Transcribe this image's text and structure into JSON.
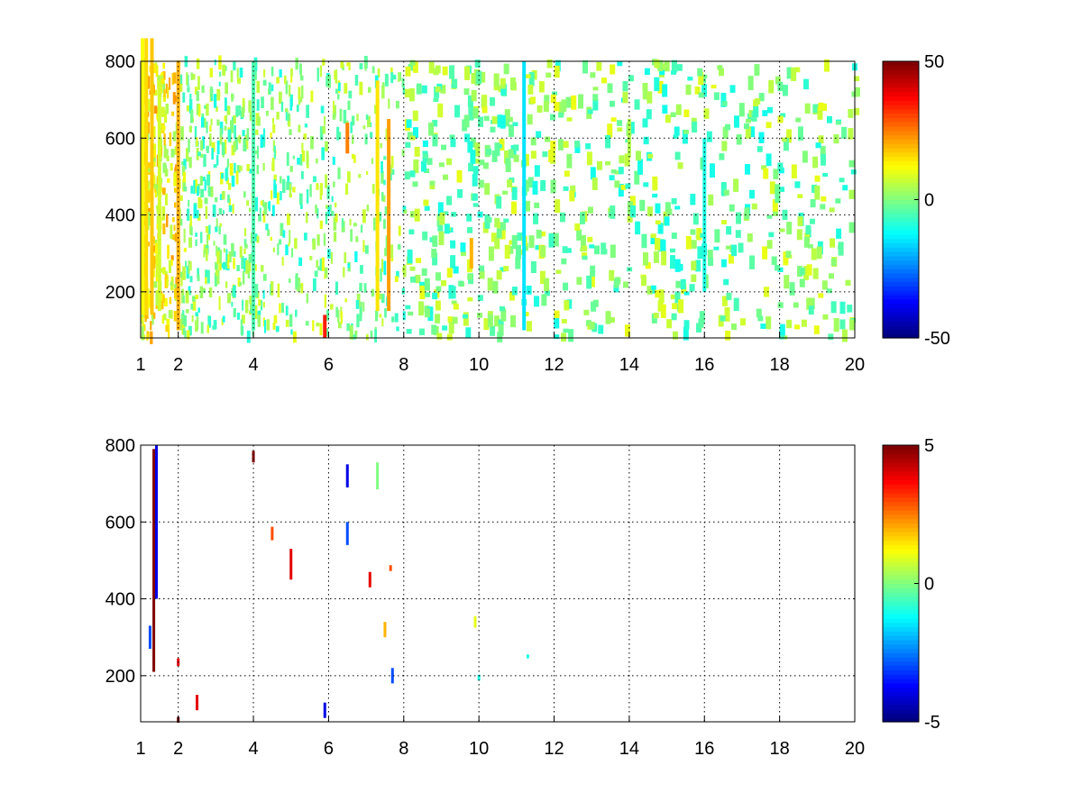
{
  "chart_data": [
    {
      "type": "heatmap",
      "title": "",
      "xlabel": "",
      "ylabel": "",
      "xlim": [
        1,
        20
      ],
      "ylim": [
        80,
        800
      ],
      "x_ticks": [
        "1",
        "2",
        "4",
        "6",
        "8",
        "10",
        "12",
        "14",
        "16",
        "18",
        "20"
      ],
      "y_ticks": [
        "200",
        "400",
        "600",
        "800"
      ],
      "grid": true,
      "colormap": "jet",
      "colorbar": {
        "min": -50,
        "max": 50,
        "ticks": [
          "50",
          "0",
          "-50"
        ]
      },
      "description_of_values": "sparse scattered cells; dense near x=1-2, value mostly near 0 (green/cyan/yellow), a few high values near x=6 bottom",
      "cells": [
        {
          "x": 1.05,
          "y": 500,
          "v": 12,
          "h": 720
        },
        {
          "x": 1.15,
          "y": 500,
          "v": 16,
          "h": 720
        },
        {
          "x": 1.3,
          "y": 500,
          "v": 18,
          "h": 720
        },
        {
          "x": 1.5,
          "y": 450,
          "v": 8,
          "h": 600
        },
        {
          "x": 2.0,
          "y": 450,
          "v": 20,
          "h": 700
        },
        {
          "x": 4.0,
          "y": 450,
          "v": -5,
          "h": 700
        },
        {
          "x": 5.9,
          "y": 110,
          "v": 35,
          "h": 60
        },
        {
          "x": 6.5,
          "y": 600,
          "v": 25,
          "h": 80
        },
        {
          "x": 7.3,
          "y": 450,
          "v": 15,
          "h": 600
        },
        {
          "x": 7.6,
          "y": 400,
          "v": 22,
          "h": 500
        },
        {
          "x": 9.8,
          "y": 300,
          "v": 20,
          "h": 80
        },
        {
          "x": 11.2,
          "y": 450,
          "v": -15,
          "h": 700
        },
        {
          "x": 14.0,
          "y": 600,
          "v": 5,
          "h": 100
        },
        {
          "x": 16.0,
          "y": 400,
          "v": -10,
          "h": 400
        }
      ]
    },
    {
      "type": "heatmap",
      "title": "",
      "xlabel": "",
      "ylabel": "",
      "xlim": [
        1,
        20
      ],
      "ylim": [
        80,
        800
      ],
      "x_ticks": [
        "1",
        "2",
        "4",
        "6",
        "8",
        "10",
        "12",
        "14",
        "16",
        "18",
        "20"
      ],
      "y_ticks": [
        "200",
        "400",
        "600",
        "800"
      ],
      "grid": true,
      "colormap": "jet",
      "colorbar": {
        "min": -5,
        "max": 5,
        "ticks": [
          "5",
          "0",
          "-5"
        ]
      },
      "cells": [
        {
          "x": 1.35,
          "y": 500,
          "v": 5,
          "h": 580
        },
        {
          "x": 1.42,
          "y": 600,
          "v": -4,
          "h": 400
        },
        {
          "x": 1.25,
          "y": 300,
          "v": -3,
          "h": 60
        },
        {
          "x": 2.0,
          "y": 85,
          "v": 5,
          "h": 15
        },
        {
          "x": 2.0,
          "y": 235,
          "v": 4,
          "h": 20
        },
        {
          "x": 2.5,
          "y": 130,
          "v": 4,
          "h": 40
        },
        {
          "x": 4.0,
          "y": 770,
          "v": 5,
          "h": 30
        },
        {
          "x": 4.5,
          "y": 570,
          "v": 3,
          "h": 35
        },
        {
          "x": 5.0,
          "y": 490,
          "v": 4,
          "h": 80
        },
        {
          "x": 5.9,
          "y": 110,
          "v": -4,
          "h": 40
        },
        {
          "x": 6.5,
          "y": 720,
          "v": -4,
          "h": 60
        },
        {
          "x": 6.5,
          "y": 570,
          "v": -3,
          "h": 60
        },
        {
          "x": 7.1,
          "y": 450,
          "v": 4,
          "h": 40
        },
        {
          "x": 7.3,
          "y": 720,
          "v": 0,
          "h": 70
        },
        {
          "x": 7.5,
          "y": 320,
          "v": 2,
          "h": 40
        },
        {
          "x": 7.65,
          "y": 480,
          "v": 3,
          "h": 15
        },
        {
          "x": 7.7,
          "y": 200,
          "v": -3,
          "h": 40
        },
        {
          "x": 9.9,
          "y": 340,
          "v": 1,
          "h": 30
        },
        {
          "x": 10.0,
          "y": 195,
          "v": -1,
          "h": 15
        },
        {
          "x": 11.3,
          "y": 250,
          "v": -1,
          "h": 10
        }
      ]
    }
  ]
}
